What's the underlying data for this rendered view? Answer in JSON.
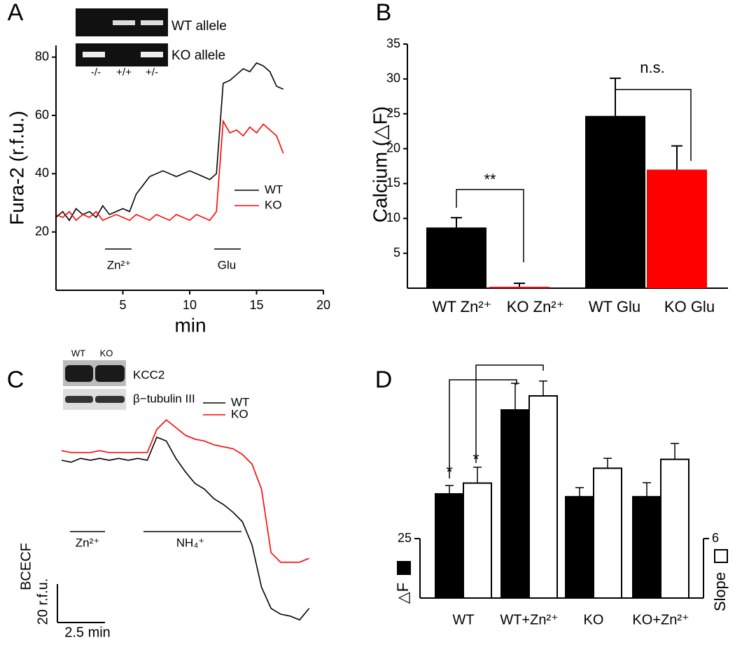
{
  "chart_data": [
    {
      "type": "line",
      "panel": "A",
      "x_label": "min",
      "y_label": "Fura-2 (r.f.u.)",
      "x": [
        0,
        0.5,
        1,
        1.5,
        2,
        2.5,
        3,
        3.5,
        4,
        4.5,
        5,
        5.5,
        6,
        6.5,
        7,
        7.5,
        8,
        8.5,
        9,
        9.5,
        10,
        10.5,
        11,
        11.5,
        12,
        12.5,
        13,
        13.5,
        14,
        14.5,
        15,
        15.5,
        16,
        16.5,
        17
      ],
      "series": [
        {
          "name": "WT",
          "color": "#000000",
          "values": [
            25,
            27,
            24,
            28,
            26,
            27,
            25,
            29,
            26,
            27,
            28,
            27,
            33,
            36,
            39,
            40,
            41,
            40,
            39,
            40,
            41,
            40,
            39,
            38,
            40,
            71,
            72,
            74,
            76,
            75,
            78,
            77,
            75,
            70,
            69
          ]
        },
        {
          "name": "KO",
          "color": "#ff0000",
          "values": [
            26,
            25,
            27,
            24,
            26,
            25,
            27,
            24,
            25,
            26,
            25,
            24,
            26,
            25,
            24,
            26,
            25,
            24,
            26,
            25,
            24,
            26,
            25,
            24,
            27,
            58,
            54,
            55,
            53,
            56,
            54,
            57,
            55,
            53,
            47
          ]
        }
      ],
      "xlim": [
        0,
        20
      ],
      "ylim": [
        0,
        84
      ],
      "xticks": [
        5,
        10,
        15,
        20
      ],
      "yticks": [
        20,
        40,
        60,
        80
      ],
      "annotations": [
        "Zn²⁺",
        "Glu"
      ],
      "inset": {
        "rows": [
          "WT allele",
          "KO allele"
        ],
        "columns": [
          "-/-",
          "+/+",
          "+/-"
        ]
      }
    },
    {
      "type": "bar",
      "panel": "B",
      "y_label": "Calcium (△F)",
      "categories": [
        "WT Zn²⁺",
        "KO Zn²⁺",
        "WT Glu",
        "KO Glu"
      ],
      "values": [
        8.7,
        0.2,
        24.7,
        17
      ],
      "errors": [
        1.4,
        0.5,
        5.4,
        3.4
      ],
      "colors": [
        "#000000",
        "#ff0000",
        "#000000",
        "#ff0000"
      ],
      "ylim": [
        0,
        35
      ],
      "yticks": [
        5,
        10,
        15,
        20,
        25,
        30,
        35
      ],
      "annotations": [
        "**",
        "n.s."
      ]
    },
    {
      "type": "line",
      "panel": "C",
      "x": [
        0,
        0.5,
        1,
        1.5,
        2,
        2.5,
        3,
        3.5,
        4,
        4.5,
        5,
        5.5,
        6,
        6.5,
        7,
        7.5,
        8,
        8.5,
        9,
        9.5,
        10,
        10.5,
        11,
        11.5,
        12,
        12.5,
        13
      ],
      "series": [
        {
          "name": "WT",
          "color": "#000000",
          "values": [
            88,
            87,
            89,
            88,
            89,
            88,
            89,
            88,
            89,
            88,
            100,
            98,
            89,
            82,
            76,
            73,
            68,
            65,
            61,
            56,
            44,
            22,
            11,
            8,
            7,
            5,
            11
          ]
        },
        {
          "name": "KO",
          "color": "#ff0000",
          "values": [
            93,
            92,
            92,
            92,
            93,
            92,
            92,
            92,
            92,
            92,
            104,
            109,
            105,
            101,
            99,
            98,
            96,
            95,
            94,
            91,
            86,
            73,
            40,
            35,
            35,
            35,
            37
          ]
        }
      ],
      "scale_bar": {
        "y_title": "BCECF",
        "y_label": "20 r.f.u.",
        "y_value": 20,
        "x_label": "2.5 min",
        "x_value": 2.5
      },
      "annotations": [
        "Zn²⁺",
        "NH₄⁺"
      ],
      "inset": {
        "columns": [
          "WT",
          "KO"
        ],
        "rows": [
          "KCC2",
          "β−tubulin III"
        ]
      }
    },
    {
      "type": "bar",
      "panel": "D",
      "categories": [
        "WT",
        "WT+Zn²⁺",
        "KO",
        "KO+Zn²⁺"
      ],
      "series": [
        {
          "name": "△F",
          "color": "#000000",
          "values": [
            43.8,
            79.1,
            42.6,
            42.6
          ],
          "errors": [
            3.5,
            11.2,
            3.8,
            5.9
          ]
        },
        {
          "name": "Slope",
          "color": "#ffffff",
          "axis": "y2",
          "values": [
            11.6,
            20.4,
            13.1,
            14
          ],
          "errors": [
            1.6,
            1.5,
            1,
            1.6
          ]
        }
      ],
      "ylim": [
        0,
        25
      ],
      "yticks": [
        25
      ],
      "y2lim": [
        0,
        6
      ],
      "y2ticks": [
        6
      ],
      "annotations": [
        "*",
        "*"
      ]
    }
  ]
}
